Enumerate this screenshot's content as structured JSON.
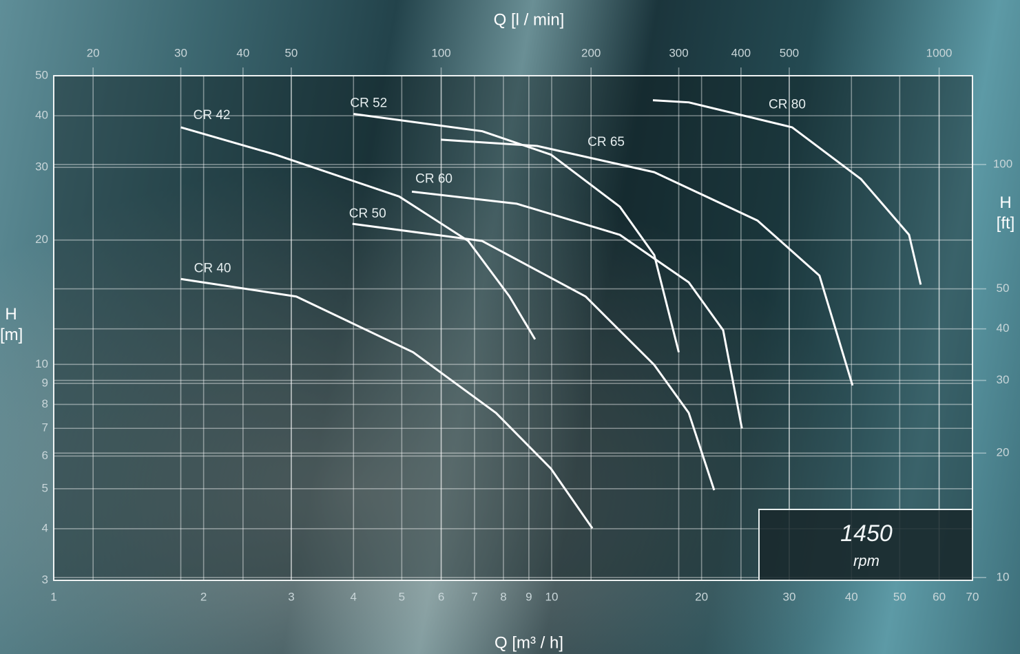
{
  "chart_data": {
    "type": "line",
    "log_scale": {
      "x": true,
      "y": true
    },
    "grid": true,
    "xlabel": "Q [m³ / h]",
    "ylabel": "H [m]",
    "x2label": "Q [l / min]",
    "y2label": "H [ft]",
    "xlim": [
      1,
      70
    ],
    "xticks": [
      1,
      2,
      3,
      4,
      5,
      6,
      7,
      8,
      9,
      10,
      20,
      30,
      40,
      50,
      60,
      70
    ],
    "ylim": [
      3,
      50
    ],
    "yticks": [
      3,
      4,
      5,
      6,
      7,
      8,
      9,
      10,
      20,
      30,
      40,
      50
    ],
    "x2lim": [
      16.67,
      1166.7
    ],
    "x2ticks": [
      20,
      30,
      40,
      50,
      100,
      200,
      300,
      400,
      500,
      1000
    ],
    "y2lim": [
      9.84,
      164.04
    ],
    "y2ticks": [
      10,
      20,
      30,
      40,
      50,
      100
    ],
    "annotation": {
      "speed": "1450",
      "unit": "rpm"
    },
    "series": [
      {
        "name": "CR 42",
        "color": "#ffffff",
        "x": [
          1.8,
          2.79,
          4.94,
          6.8,
          8.23,
          9.26
        ],
        "values": [
          37.5,
          32.2,
          25.5,
          19.9,
          14.6,
          11.5
        ]
      },
      {
        "name": "CR 52",
        "color": "#ffffff",
        "x": [
          4.0,
          7.25,
          9.97,
          13.7,
          16.07,
          18.0
        ],
        "values": [
          40.4,
          36.7,
          32.2,
          24.1,
          18.4,
          10.7
        ]
      },
      {
        "name": "CR 80",
        "color": "#ffffff",
        "x": [
          15.97,
          18.85,
          30.4,
          41.8,
          52.2,
          55.1
        ],
        "values": [
          43.6,
          43.1,
          37.5,
          28.1,
          20.6,
          15.6
        ]
      },
      {
        "name": "CR 65",
        "color": "#ffffff",
        "x": [
          5.99,
          9.35,
          16.07,
          25.9,
          34.5,
          40.2
        ],
        "values": [
          35.0,
          33.8,
          29.2,
          22.3,
          16.4,
          8.89
        ]
      },
      {
        "name": "CR 60",
        "color": "#ffffff",
        "x": [
          5.24,
          8.5,
          13.7,
          18.85,
          22.1,
          24.1
        ],
        "values": [
          26.2,
          24.5,
          20.6,
          15.8,
          12.1,
          7.0
        ]
      },
      {
        "name": "CR 50",
        "color": "#ffffff",
        "x": [
          3.98,
          7.25,
          11.7,
          16.07,
          18.85,
          21.2
        ],
        "values": [
          21.9,
          19.9,
          14.6,
          9.97,
          7.63,
          4.96
        ]
      },
      {
        "name": "CR 40",
        "color": "#ffffff",
        "x": [
          1.8,
          3.07,
          5.27,
          7.73,
          9.97,
          12.07
        ],
        "values": [
          16.1,
          14.6,
          10.7,
          7.63,
          5.59,
          4.01
        ]
      }
    ]
  }
}
